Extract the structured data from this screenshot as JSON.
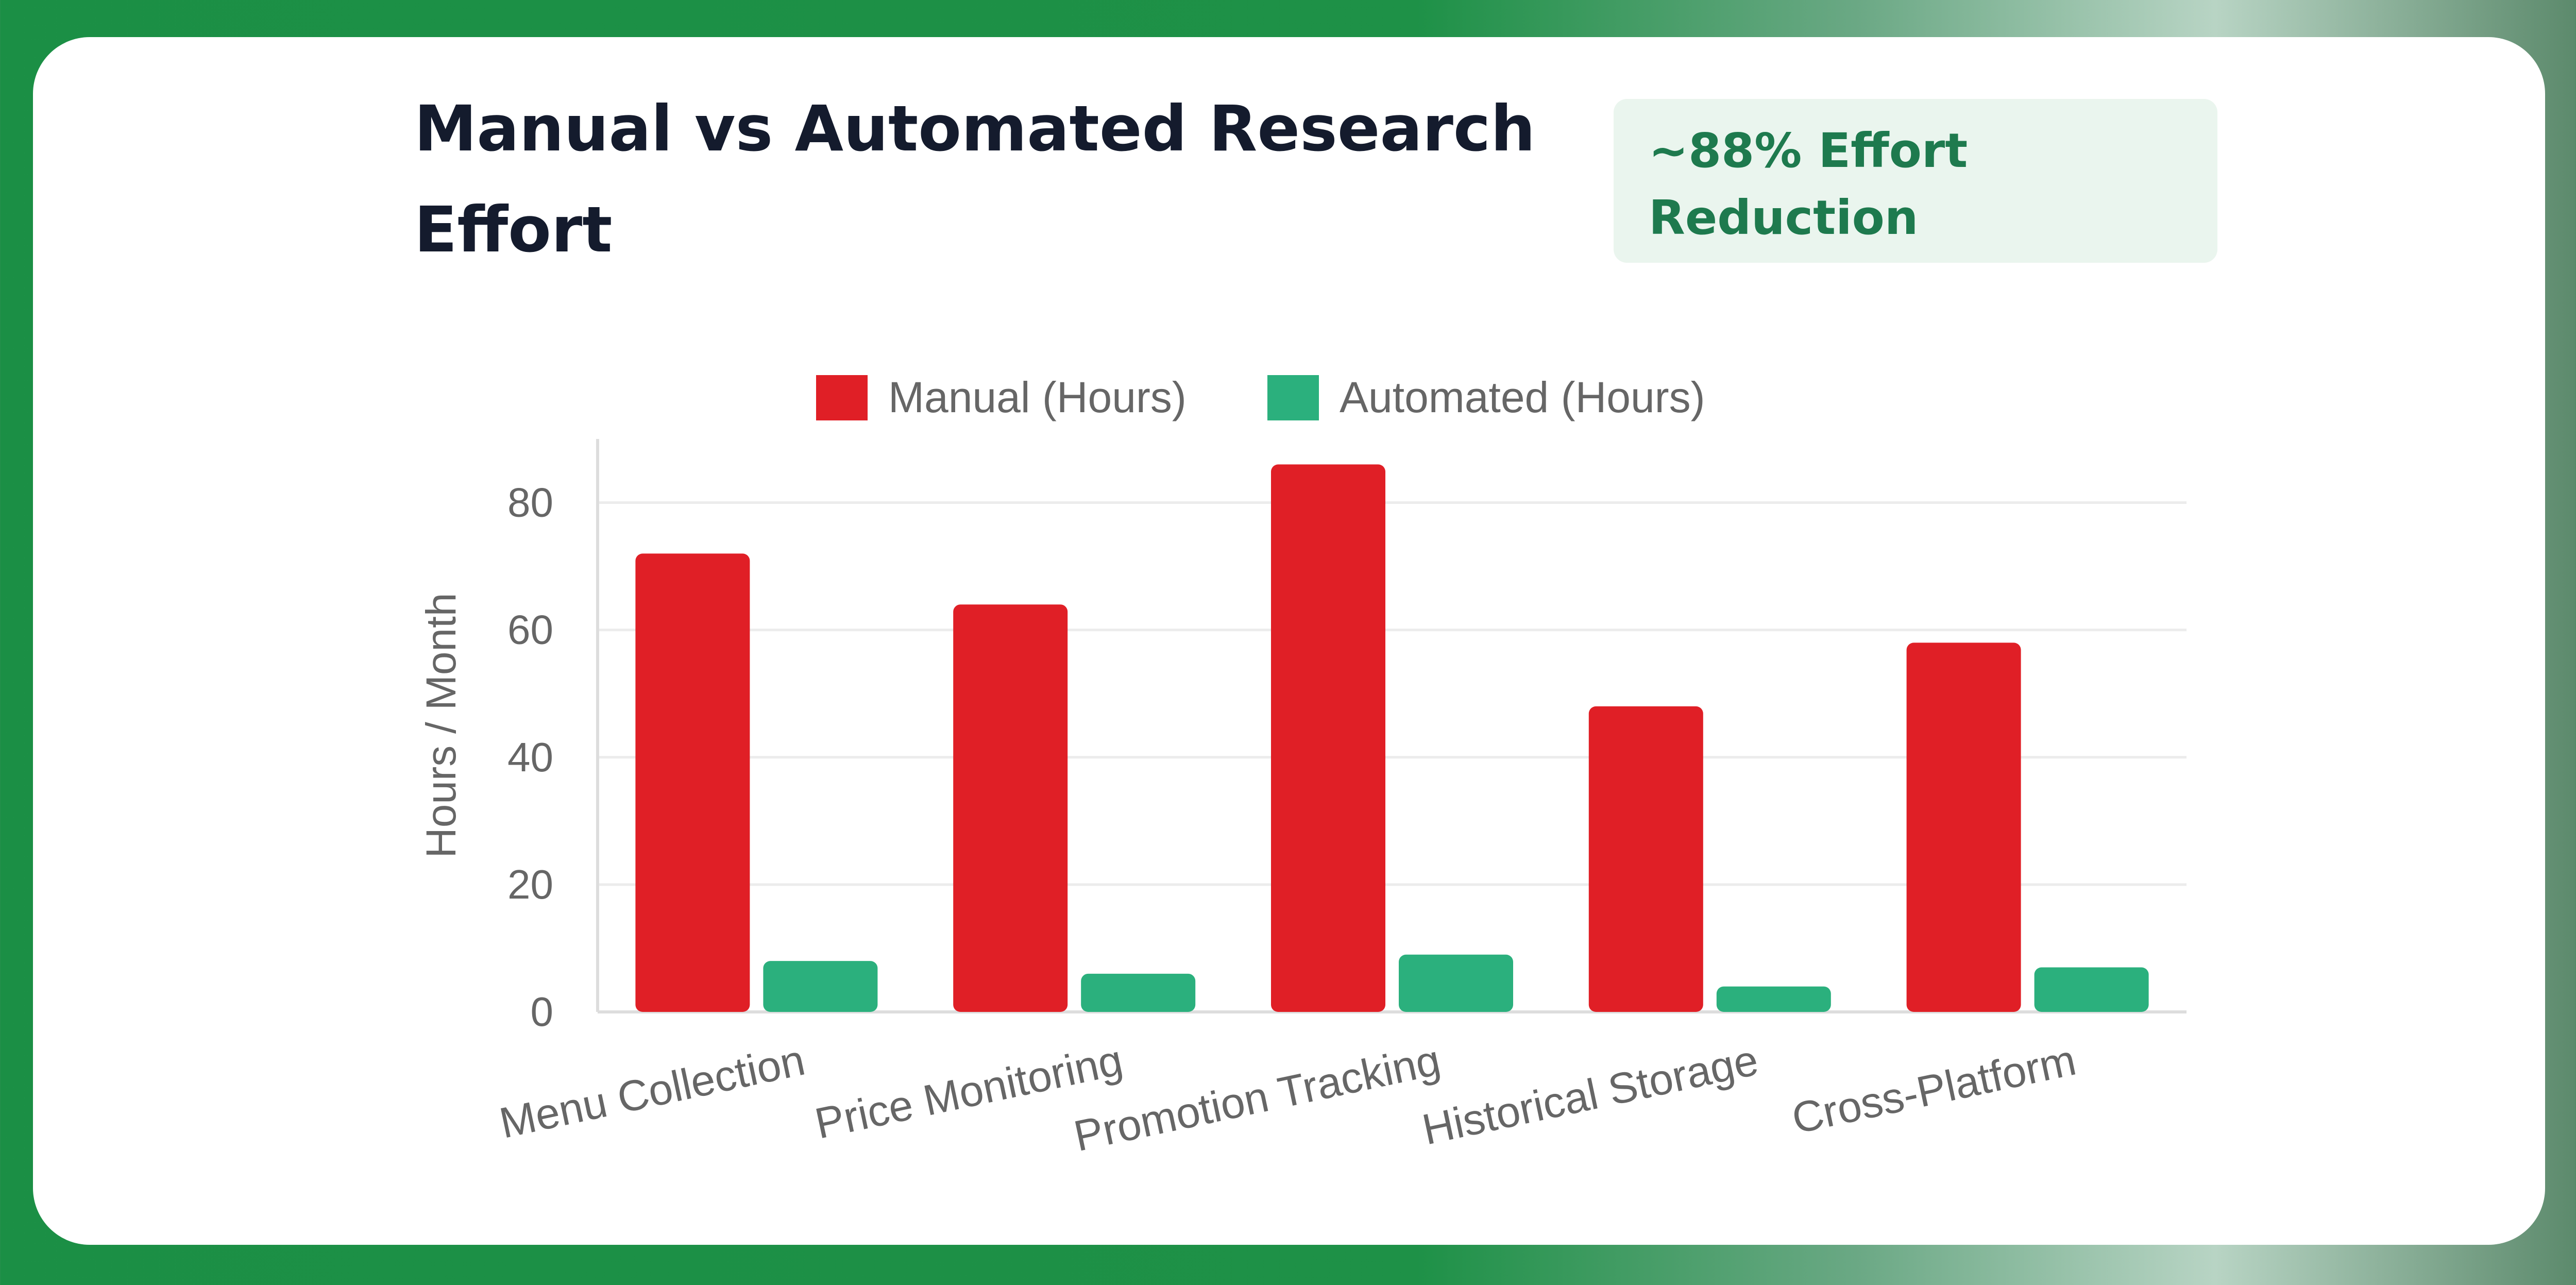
{
  "header": {
    "title": "Manual vs Automated Research Effort",
    "badge": "~88% Effort Reduction"
  },
  "colors": {
    "manual": "#e01f26",
    "automated": "#2bb07d",
    "badge_bg": "#eaf5ee",
    "badge_text": "#1e7a4e",
    "title": "#141b2d",
    "axis_text": "#666666",
    "grid": "#ececec"
  },
  "chart_data": {
    "type": "bar",
    "categories": [
      "Menu Collection",
      "Price Monitoring",
      "Promotion Tracking",
      "Historical Storage",
      "Cross-Platform"
    ],
    "series": [
      {
        "name": "Manual (Hours)",
        "values": [
          72,
          64,
          86,
          48,
          58
        ]
      },
      {
        "name": "Automated (Hours)",
        "values": [
          8,
          6,
          9,
          4,
          7
        ]
      }
    ],
    "xlabel": "",
    "ylabel": "Hours / Month",
    "ylim": [
      0,
      90
    ],
    "yticks": [
      0,
      20,
      40,
      60,
      80
    ],
    "grid": true,
    "legend_position": "top"
  }
}
